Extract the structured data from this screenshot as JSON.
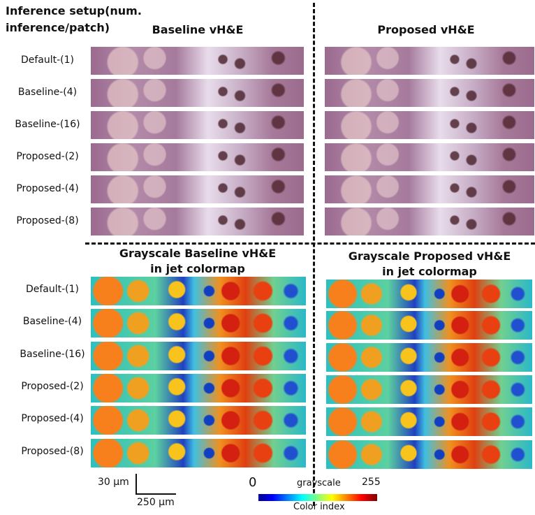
{
  "header": {
    "title_lines": [
      "Inference setup(num.",
      "inference/patch)"
    ]
  },
  "top": {
    "left_title": "Baseline vH&E",
    "right_title": "Proposed vH&E",
    "row_labels": [
      "Default-(1)",
      "Baseline-(4)",
      "Baseline-(16)",
      "Proposed-(2)",
      "Proposed-(4)",
      "Proposed-(8)"
    ]
  },
  "bottom": {
    "left_title_lines": [
      "Grayscale Baseline vH&E",
      "in jet colormap"
    ],
    "right_title_lines": [
      "Grayscale Proposed vH&E",
      "in jet colormap"
    ],
    "row_labels": [
      "Default-(1)",
      "Baseline-(4)",
      "Baseline-(16)",
      "Proposed-(2)",
      "Proposed-(4)",
      "Proposed-(8)"
    ]
  },
  "scale_bar": {
    "vertical": "30 μm",
    "horizontal": "250 μm"
  },
  "colorbar": {
    "min": 0,
    "max": 255,
    "label": "grayscale",
    "title": "Color index"
  }
}
